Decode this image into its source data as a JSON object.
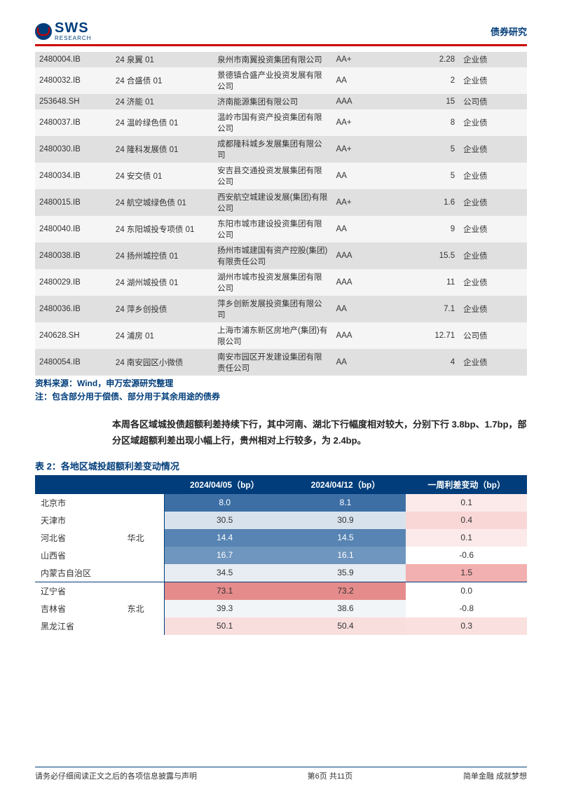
{
  "header": {
    "logo_main": "SWS",
    "logo_sub": "RESEARCH",
    "category": "债券研究"
  },
  "bond_table": {
    "rows": [
      {
        "code": "2480004.IB",
        "name": "24 泉翼 01",
        "issuer": "泉州市南翼投资集团有限公司",
        "rating": "AA+",
        "amount": "2.28",
        "type": "企业债"
      },
      {
        "code": "2480032.IB",
        "name": "24 合盛债 01",
        "issuer": "景德镇合盛产业投资发展有限公司",
        "rating": "AA",
        "amount": "2",
        "type": "企业债"
      },
      {
        "code": "253648.SH",
        "name": "24 济能 01",
        "issuer": "济南能源集团有限公司",
        "rating": "AAA",
        "amount": "15",
        "type": "公司债"
      },
      {
        "code": "2480037.IB",
        "name": "24 温岭绿色债 01",
        "issuer": "温岭市国有资产投资集团有限公司",
        "rating": "AA+",
        "amount": "8",
        "type": "企业债"
      },
      {
        "code": "2480030.IB",
        "name": "24 隆科发展债 01",
        "issuer": "成都隆科城乡发展集团有限公司",
        "rating": "AA+",
        "amount": "5",
        "type": "企业债"
      },
      {
        "code": "2480034.IB",
        "name": "24 安交债 01",
        "issuer": "安吉县交通投资发展集团有限公司",
        "rating": "AA",
        "amount": "5",
        "type": "企业债"
      },
      {
        "code": "2480015.IB",
        "name": "24 航空城绿色债 01",
        "issuer": "西安航空城建设发展(集团)有限公司",
        "rating": "AA+",
        "amount": "1.6",
        "type": "企业债"
      },
      {
        "code": "2480040.IB",
        "name": "24 东阳城投专项债 01",
        "issuer": "东阳市城市建设投资集团有限公司",
        "rating": "AA",
        "amount": "9",
        "type": "企业债"
      },
      {
        "code": "2480038.IB",
        "name": "24 扬州城控债 01",
        "issuer": "扬州市城建国有资产控股(集团)有限责任公司",
        "rating": "AAA",
        "amount": "15.5",
        "type": "企业债"
      },
      {
        "code": "2480029.IB",
        "name": "24 湖州城投债 01",
        "issuer": "湖州市城市投资发展集团有限公司",
        "rating": "AAA",
        "amount": "11",
        "type": "企业债"
      },
      {
        "code": "2480036.IB",
        "name": "24 萍乡创投债",
        "issuer": "萍乡创新发展投资集团有限公司",
        "rating": "AA",
        "amount": "7.1",
        "type": "企业债"
      },
      {
        "code": "240628.SH",
        "name": "24 浦房 01",
        "issuer": "上海市浦东新区房地产(集团)有限公司",
        "rating": "AAA",
        "amount": "12.71",
        "type": "公司债"
      },
      {
        "code": "2480054.IB",
        "name": "24 南安园区小微债",
        "issuer": "南安市园区开发建设集团有限责任公司",
        "rating": "AA",
        "amount": "4",
        "type": "企业债"
      }
    ],
    "source": "资料来源：Wind，申万宏源研究整理",
    "note": "注：包含部分用于偿债、部分用于其余用途的债券"
  },
  "body_text": "本周各区域城投债超额利差持续下行，其中河南、湖北下行幅度相对较大，分别下行 3.8bp、1.7bp，部分区域超额利差出现小幅上行，贵州相对上行较多，为 2.4bp。",
  "table2": {
    "title": "表 2：各地区城投超额利差变动情况",
    "headers": [
      "",
      "",
      "2024/04/05（bp）",
      "2024/04/12（bp）",
      "一周利差变动（bp）"
    ],
    "groups": [
      {
        "region": "华北",
        "rows": [
          {
            "province": "北京市",
            "v1": "8.0",
            "v2": "8.1",
            "d": "0.1",
            "c1": "#3d6fa5",
            "c2": "#3d6fa5",
            "cd": "#fceaea"
          },
          {
            "province": "天津市",
            "v1": "30.5",
            "v2": "30.9",
            "d": "0.4",
            "c1": "#d8e2ec",
            "c2": "#d8e2ec",
            "cd": "#fad7d7"
          },
          {
            "province": "河北省",
            "v1": "14.4",
            "v2": "14.5",
            "d": "0.1",
            "c1": "#5784b3",
            "c2": "#5784b3",
            "cd": "#fceaea"
          },
          {
            "province": "山西省",
            "v1": "16.7",
            "v2": "16.1",
            "d": "-0.6",
            "c1": "#6f96be",
            "c2": "#6f96be",
            "cd": "#ffffff"
          },
          {
            "province": "内蒙古自治区",
            "v1": "34.5",
            "v2": "35.9",
            "d": "1.5",
            "c1": "#e7edf3",
            "c2": "#e7edf3",
            "cd": "#f3b0b0"
          }
        ]
      },
      {
        "region": "东北",
        "rows": [
          {
            "province": "辽宁省",
            "v1": "73.1",
            "v2": "73.2",
            "d": "0.0",
            "c1": "#e58b8b",
            "c2": "#e58b8b",
            "cd": "#ffffff"
          },
          {
            "province": "吉林省",
            "v1": "39.3",
            "v2": "38.6",
            "d": "-0.8",
            "c1": "#f2f5f8",
            "c2": "#f2f5f8",
            "cd": "#ffffff"
          },
          {
            "province": "黑龙江省",
            "v1": "50.1",
            "v2": "50.4",
            "d": "0.3",
            "c1": "#f9dede",
            "c2": "#f9dede",
            "cd": "#fbe0e0"
          }
        ]
      }
    ]
  },
  "footer": {
    "left": "请务必仔细阅读正文之后的各项信息披露与声明",
    "center": "第6页 共11页",
    "right": "简单金融 成就梦想"
  }
}
